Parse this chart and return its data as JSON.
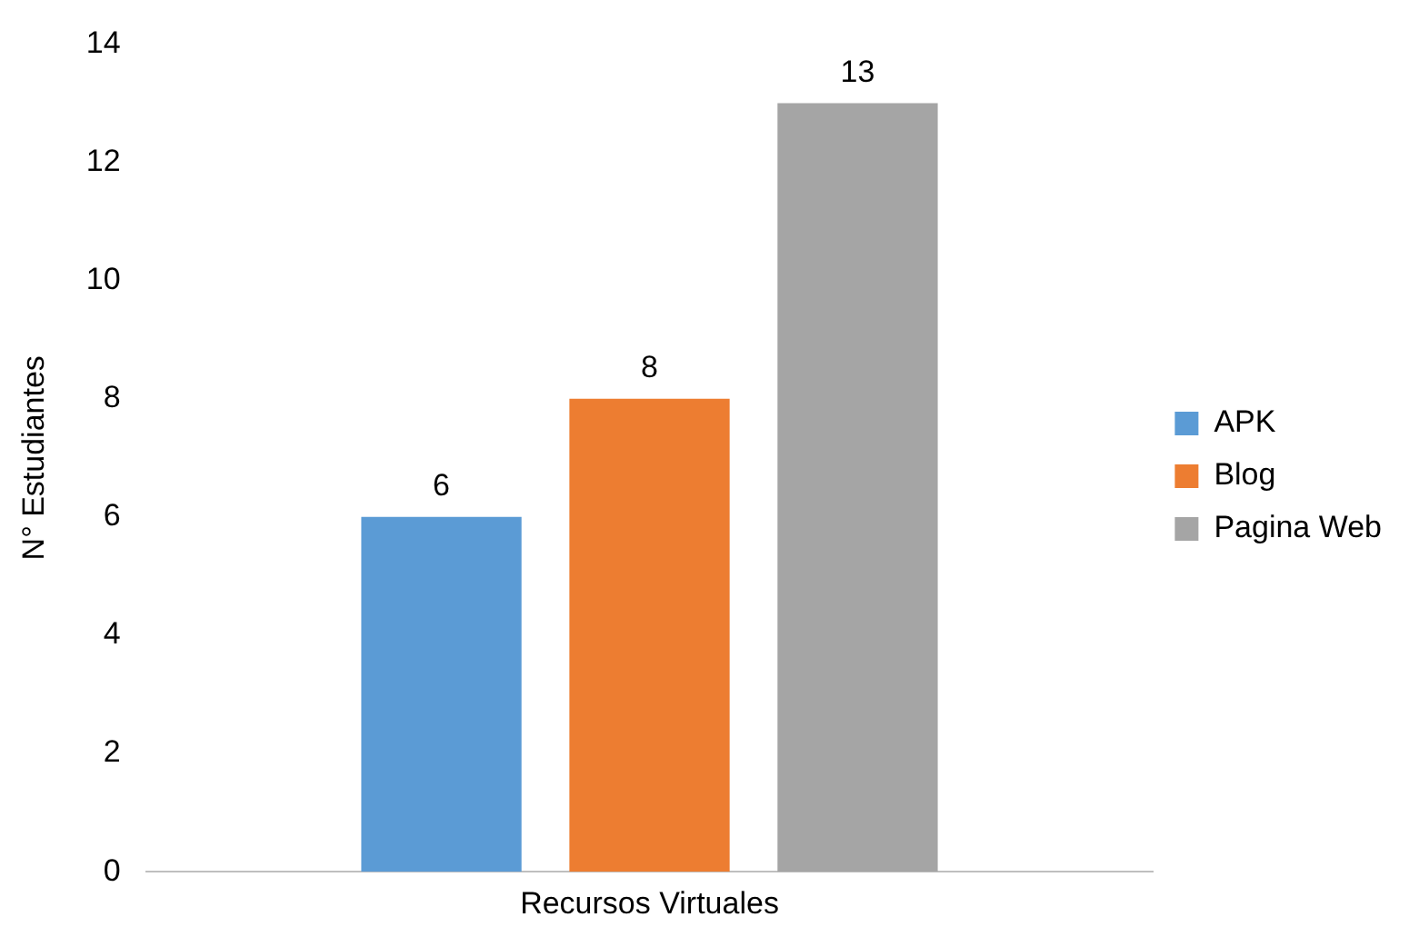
{
  "chart_data": {
    "type": "bar",
    "ylabel": "N° Estudiantes",
    "categories": [
      "Recursos Virtuales"
    ],
    "series": [
      {
        "name": "APK",
        "color": "#5b9bd5",
        "values": [
          6
        ]
      },
      {
        "name": "Blog",
        "color": "#ed7d31",
        "values": [
          8
        ]
      },
      {
        "name": "Pagina Web",
        "color": "#a5a5a5",
        "values": [
          13
        ]
      }
    ],
    "ylim": [
      0,
      14
    ],
    "yticks": [
      0,
      2,
      4,
      6,
      8,
      10,
      12,
      14
    ],
    "grid": false,
    "legend": "right",
    "data_labels": true
  }
}
